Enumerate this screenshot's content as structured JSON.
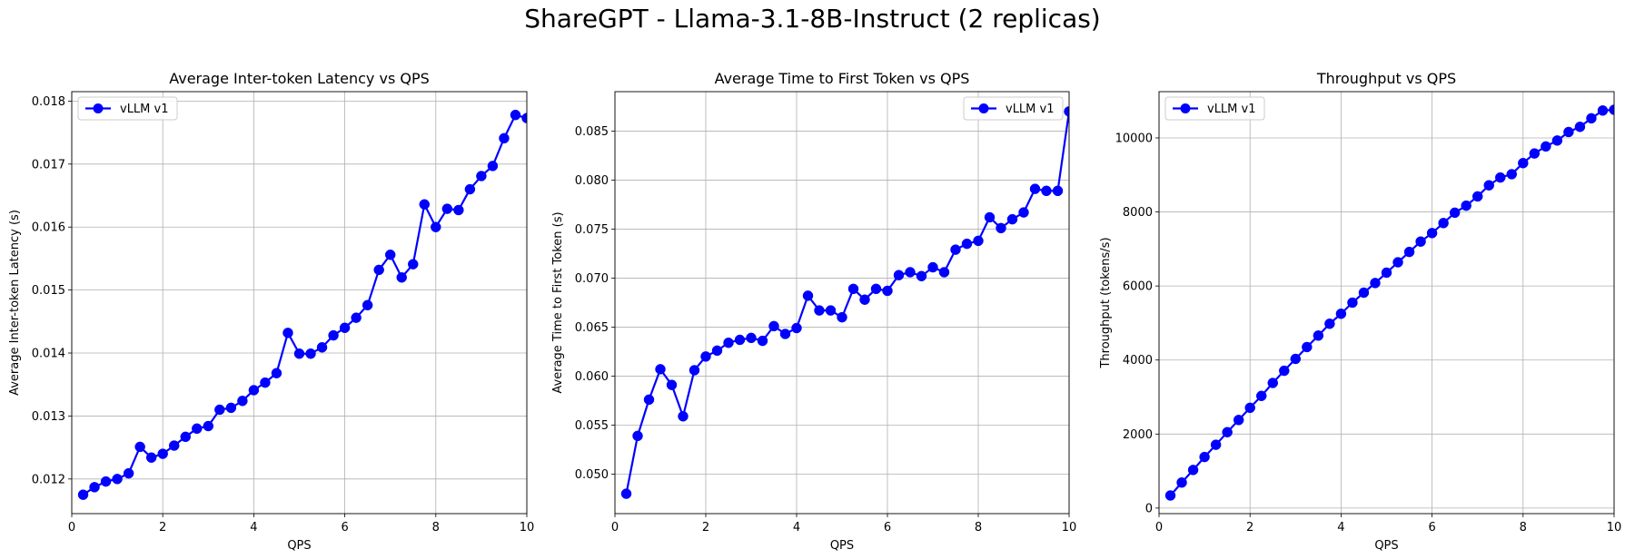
{
  "title": "ShareGPT - Llama-3.1-8B-Instruct (2 replicas)",
  "colors": {
    "series": "#0000ff",
    "grid": "#b0b0b0"
  },
  "chart_data": [
    {
      "type": "line",
      "title": "Average Inter-token Latency vs QPS",
      "xlabel": "QPS",
      "ylabel": "Average Inter-token Latency (s)",
      "xlim": [
        0,
        10
      ],
      "ylim": [
        0.01145,
        0.01815
      ],
      "xticks": [
        0,
        2,
        4,
        6,
        8,
        10
      ],
      "xtick_labels": [
        "0",
        "2",
        "4",
        "6",
        "8",
        "10"
      ],
      "yticks": [
        0.012,
        0.013,
        0.014,
        0.015,
        0.016,
        0.017,
        0.018
      ],
      "ytick_labels": [
        "0.012",
        "0.013",
        "0.014",
        "0.015",
        "0.016",
        "0.017",
        "0.018"
      ],
      "grid": true,
      "legend_position": "upper-left",
      "x": [
        0.25,
        0.5,
        0.75,
        1.0,
        1.25,
        1.5,
        1.75,
        2.0,
        2.25,
        2.5,
        2.75,
        3.0,
        3.25,
        3.5,
        3.75,
        4.0,
        4.25,
        4.5,
        4.75,
        5.0,
        5.25,
        5.5,
        5.75,
        6.0,
        6.25,
        6.5,
        6.75,
        7.0,
        7.25,
        7.5,
        7.75,
        8.0,
        8.25,
        8.5,
        8.75,
        9.0,
        9.25,
        9.5,
        9.75,
        10.0
      ],
      "series": [
        {
          "name": "vLLM v1",
          "values": [
            0.01175,
            0.01187,
            0.01196,
            0.012,
            0.01209,
            0.01251,
            0.01234,
            0.0124,
            0.01253,
            0.01267,
            0.0128,
            0.01284,
            0.0131,
            0.01313,
            0.01324,
            0.01341,
            0.01353,
            0.01368,
            0.01432,
            0.01399,
            0.01399,
            0.01409,
            0.01428,
            0.0144,
            0.01456,
            0.01476,
            0.01532,
            0.01556,
            0.0152,
            0.01541,
            0.01636,
            0.016,
            0.01629,
            0.01627,
            0.0166,
            0.01681,
            0.01697,
            0.01741,
            0.01778,
            0.01773
          ]
        }
      ]
    },
    {
      "type": "line",
      "title": "Average Time to First Token vs QPS",
      "xlabel": "QPS",
      "ylabel": "Average Time to First Token (s)",
      "xlim": [
        0,
        10
      ],
      "ylim": [
        0.04597,
        0.08902
      ],
      "xticks": [
        0,
        2,
        4,
        6,
        8,
        10
      ],
      "xtick_labels": [
        "0",
        "2",
        "4",
        "6",
        "8",
        "10"
      ],
      "yticks": [
        0.05,
        0.055,
        0.06,
        0.065,
        0.07,
        0.075,
        0.08,
        0.085
      ],
      "ytick_labels": [
        "0.050",
        "0.055",
        "0.060",
        "0.065",
        "0.070",
        "0.075",
        "0.080",
        "0.085"
      ],
      "grid": true,
      "legend_position": "upper-right",
      "x": [
        0.25,
        0.5,
        0.75,
        1.0,
        1.25,
        1.5,
        1.75,
        2.0,
        2.25,
        2.5,
        2.75,
        3.0,
        3.25,
        3.5,
        3.75,
        4.0,
        4.25,
        4.5,
        4.75,
        5.0,
        5.25,
        5.5,
        5.75,
        6.0,
        6.25,
        6.5,
        6.75,
        7.0,
        7.25,
        7.5,
        7.75,
        8.0,
        8.25,
        8.5,
        8.75,
        9.0,
        9.25,
        9.5,
        9.75,
        10.0
      ],
      "series": [
        {
          "name": "vLLM v1",
          "values": [
            0.048,
            0.0539,
            0.0576,
            0.0607,
            0.0591,
            0.0559,
            0.0606,
            0.062,
            0.0626,
            0.0634,
            0.0637,
            0.0639,
            0.0636,
            0.0651,
            0.0643,
            0.0649,
            0.0682,
            0.0667,
            0.0667,
            0.066,
            0.0689,
            0.0678,
            0.0689,
            0.0687,
            0.0703,
            0.0706,
            0.0702,
            0.0711,
            0.0706,
            0.0729,
            0.0735,
            0.0738,
            0.0762,
            0.0751,
            0.076,
            0.0767,
            0.0791,
            0.0789,
            0.0789,
            0.087
          ]
        }
      ]
    },
    {
      "type": "line",
      "title": "Throughput vs QPS",
      "xlabel": "QPS",
      "ylabel": "Throughput (tokens/s)",
      "xlim": [
        0,
        10
      ],
      "ylim": [
        -150,
        11250
      ],
      "xticks": [
        0,
        2,
        4,
        6,
        8,
        10
      ],
      "xtick_labels": [
        "0",
        "2",
        "4",
        "6",
        "8",
        "10"
      ],
      "yticks": [
        0,
        2000,
        4000,
        6000,
        8000,
        10000
      ],
      "ytick_labels": [
        "0",
        "2000",
        "4000",
        "6000",
        "8000",
        "10000"
      ],
      "grid": true,
      "legend_position": "upper-left",
      "x": [
        0.25,
        0.5,
        0.75,
        1.0,
        1.25,
        1.5,
        1.75,
        2.0,
        2.25,
        2.5,
        2.75,
        3.0,
        3.25,
        3.5,
        3.75,
        4.0,
        4.25,
        4.5,
        4.75,
        5.0,
        5.25,
        5.5,
        5.75,
        6.0,
        6.25,
        6.5,
        6.75,
        7.0,
        7.25,
        7.5,
        7.75,
        8.0,
        8.25,
        8.5,
        8.75,
        9.0,
        9.25,
        9.5,
        9.75,
        10.0
      ],
      "series": [
        {
          "name": "vLLM v1",
          "values": [
            340,
            690,
            1030,
            1380,
            1710,
            2050,
            2380,
            2710,
            3030,
            3380,
            3710,
            4030,
            4350,
            4660,
            4980,
            5250,
            5550,
            5820,
            6080,
            6360,
            6640,
            6920,
            7200,
            7430,
            7700,
            7980,
            8170,
            8420,
            8720,
            8930,
            9020,
            9320,
            9580,
            9770,
            9930,
            10160,
            10300,
            10530,
            10740,
            10760
          ]
        }
      ]
    }
  ]
}
